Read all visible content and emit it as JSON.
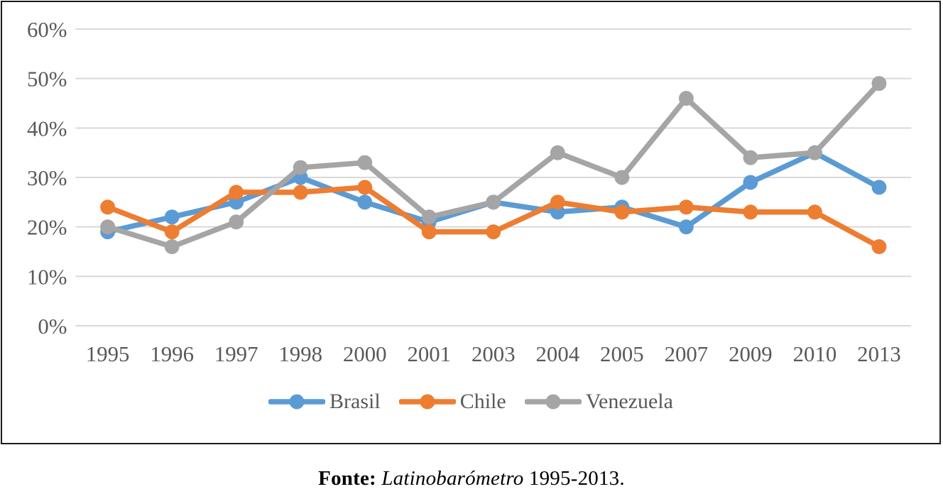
{
  "figure": {
    "caption": {
      "source_label": "Fonte:",
      "source_name": "Latinobarómetro",
      "source_years": "1995-2013."
    }
  },
  "chart_data": {
    "type": "line",
    "title": "",
    "xlabel": "",
    "ylabel": "",
    "categories": [
      "1995",
      "1996",
      "1997",
      "1998",
      "2000",
      "2001",
      "2003",
      "2004",
      "2005",
      "2007",
      "2009",
      "2010",
      "2013"
    ],
    "series": [
      {
        "name": "Brasil",
        "color": "#5B9BD5",
        "values": [
          19,
          22,
          25,
          30,
          25,
          21,
          25,
          23,
          24,
          20,
          29,
          35,
          28
        ]
      },
      {
        "name": "Chile",
        "color": "#ED7D31",
        "values": [
          24,
          19,
          27,
          27,
          28,
          19,
          19,
          25,
          23,
          24,
          23,
          23,
          16
        ]
      },
      {
        "name": "Venezuela",
        "color": "#A5A5A5",
        "values": [
          20,
          16,
          21,
          32,
          33,
          22,
          25,
          35,
          30,
          46,
          34,
          35,
          49
        ]
      }
    ],
    "ylim": [
      0,
      60
    ],
    "ytick_step": 10,
    "ytick_suffix": "%",
    "grid": true,
    "grid_color": "#D9D9D9",
    "axis_text_color": "#595959",
    "legend_position": "bottom"
  }
}
